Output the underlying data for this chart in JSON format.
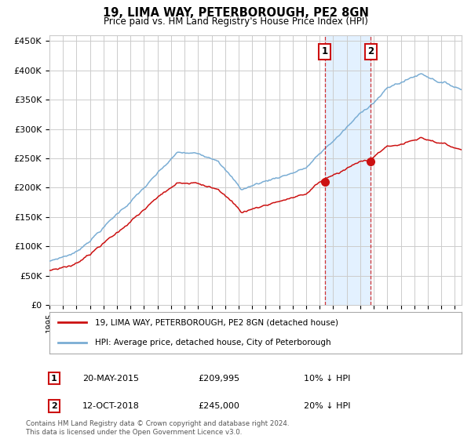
{
  "title": "19, LIMA WAY, PETERBOROUGH, PE2 8GN",
  "subtitle": "Price paid vs. HM Land Registry's House Price Index (HPI)",
  "ylim": [
    0,
    460000
  ],
  "yticks": [
    0,
    50000,
    100000,
    150000,
    200000,
    250000,
    300000,
    350000,
    400000,
    450000
  ],
  "ytick_labels": [
    "£0",
    "£50K",
    "£100K",
    "£150K",
    "£200K",
    "£250K",
    "£300K",
    "£350K",
    "£400K",
    "£450K"
  ],
  "hpi_color": "#7aadd4",
  "price_color": "#cc1111",
  "sale1_date": "20-MAY-2015",
  "sale1_price": 209995,
  "sale1_hpi_pct": "10% ↓ HPI",
  "sale2_date": "12-OCT-2018",
  "sale2_price": 245000,
  "sale2_hpi_pct": "20% ↓ HPI",
  "legend_line1": "19, LIMA WAY, PETERBOROUGH, PE2 8GN (detached house)",
  "legend_line2": "HPI: Average price, detached house, City of Peterborough",
  "footer": "Contains HM Land Registry data © Crown copyright and database right 2024.\nThis data is licensed under the Open Government Licence v3.0.",
  "sale1_year": 2015.38,
  "sale2_year": 2018.78,
  "background_color": "#ffffff",
  "grid_color": "#cccccc",
  "shade_color": "#ddeeff",
  "xlim_start": 1995,
  "xlim_end": 2025.5
}
